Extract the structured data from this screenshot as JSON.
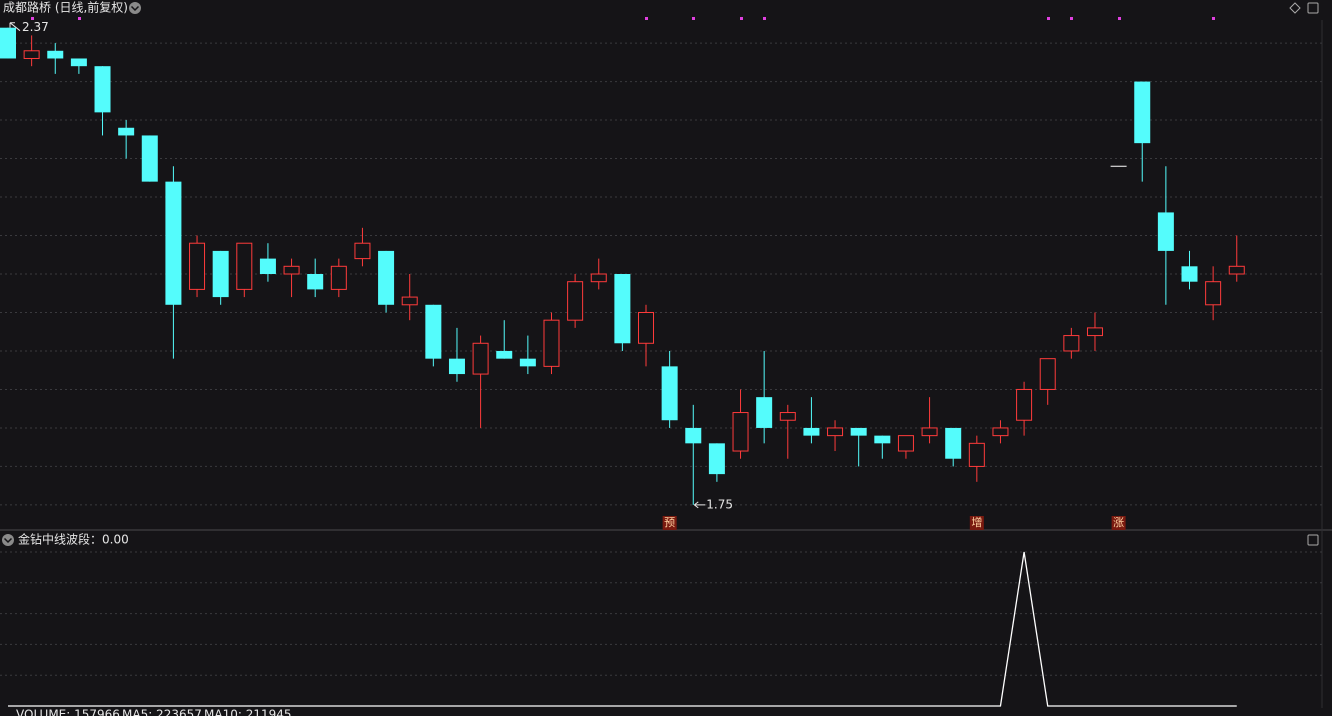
{
  "header": {
    "title": "成都路桥 (日线,前复权)"
  },
  "chart_data": [
    {
      "type": "candlestick",
      "open": [
        2.37,
        2.33,
        2.34,
        2.33,
        2.32,
        2.24,
        2.23,
        2.17,
        2.03,
        2.08,
        2.03,
        2.07,
        2.05,
        2.05,
        2.03,
        2.07,
        2.08,
        2.01,
        2.01,
        1.94,
        1.92,
        1.95,
        1.94,
        1.93,
        1.99,
        2.04,
        2.05,
        1.96,
        1.93,
        1.85,
        1.83,
        1.82,
        1.89,
        1.86,
        1.85,
        1.84,
        1.85,
        1.84,
        1.82,
        1.84,
        1.85,
        1.8,
        1.84,
        1.86,
        1.9,
        1.95,
        1.97,
        2.19,
        2.3,
        2.13,
        2.06,
        2.01,
        2.05
      ],
      "high": [
        2.37,
        2.36,
        2.35,
        2.33,
        2.32,
        2.25,
        2.23,
        2.19,
        2.1,
        2.08,
        2.09,
        2.09,
        2.07,
        2.07,
        2.07,
        2.11,
        2.08,
        2.05,
        2.01,
        1.98,
        1.97,
        1.99,
        1.97,
        2.0,
        2.05,
        2.07,
        2.05,
        2.01,
        1.95,
        1.88,
        1.83,
        1.9,
        1.95,
        1.88,
        1.89,
        1.86,
        1.85,
        1.84,
        1.84,
        1.89,
        1.85,
        1.84,
        1.86,
        1.91,
        1.94,
        1.98,
        2.0,
        2.19,
        2.3,
        2.19,
        2.08,
        2.06,
        2.1
      ],
      "low": [
        2.33,
        2.32,
        2.31,
        2.31,
        2.23,
        2.2,
        2.17,
        1.94,
        2.02,
        2.01,
        2.02,
        2.04,
        2.02,
        2.02,
        2.02,
        2.06,
        2.0,
        1.99,
        1.93,
        1.91,
        1.85,
        1.94,
        1.92,
        1.92,
        1.98,
        2.03,
        1.95,
        1.93,
        1.85,
        1.75,
        1.78,
        1.81,
        1.83,
        1.81,
        1.83,
        1.82,
        1.8,
        1.81,
        1.81,
        1.83,
        1.8,
        1.78,
        1.83,
        1.84,
        1.88,
        1.94,
        1.95,
        2.19,
        2.17,
        2.01,
        2.03,
        1.99,
        2.04
      ],
      "close": [
        2.33,
        2.34,
        2.33,
        2.32,
        2.26,
        2.23,
        2.17,
        2.01,
        2.09,
        2.02,
        2.09,
        2.05,
        2.06,
        2.03,
        2.06,
        2.09,
        2.01,
        2.02,
        1.94,
        1.92,
        1.96,
        1.94,
        1.93,
        1.99,
        2.04,
        2.05,
        1.96,
        2.0,
        1.86,
        1.83,
        1.79,
        1.87,
        1.85,
        1.87,
        1.84,
        1.85,
        1.84,
        1.83,
        1.84,
        1.85,
        1.81,
        1.83,
        1.85,
        1.9,
        1.94,
        1.97,
        1.98,
        2.19,
        2.22,
        2.08,
        2.04,
        2.04,
        2.06
      ],
      "signal_labels": [
        null,
        null,
        null,
        null,
        null,
        null,
        null,
        null,
        null,
        null,
        null,
        null,
        null,
        null,
        null,
        null,
        null,
        null,
        null,
        null,
        null,
        null,
        null,
        null,
        null,
        null,
        null,
        null,
        "预",
        null,
        null,
        null,
        null,
        null,
        null,
        null,
        null,
        null,
        null,
        null,
        null,
        "增",
        null,
        null,
        null,
        null,
        null,
        "涨",
        null,
        null,
        null,
        null,
        null
      ],
      "high_marker": 2.37,
      "low_marker": 1.75,
      "up_color": "#ff3b3b",
      "down_color": "#54fcfc",
      "flat_color": "#ffffff",
      "ylim": [
        1.72,
        2.38
      ],
      "yticks": [
        1.75,
        1.8,
        1.85,
        1.9,
        1.95,
        2.0,
        2.05,
        2.1,
        2.15,
        2.2,
        2.25,
        2.3,
        2.35
      ],
      "grid": true
    },
    {
      "type": "line",
      "title": "金钻中线波段：0.00",
      "color": "#ffffff",
      "values": [
        0,
        0,
        0,
        0,
        0,
        0,
        0,
        0,
        0,
        0,
        0,
        0,
        0,
        0,
        0,
        0,
        0,
        0,
        0,
        0,
        0,
        0,
        0,
        0,
        0,
        0,
        0,
        0,
        0,
        0,
        0,
        0,
        0,
        0,
        0,
        0,
        0,
        0,
        0,
        0,
        0,
        0,
        0,
        1,
        0,
        0,
        0,
        0,
        0,
        0,
        0,
        0,
        0
      ],
      "ylim": [
        0,
        1
      ],
      "yticks": [
        0.2,
        0.4,
        0.6,
        0.8,
        1
      ],
      "grid": true
    }
  ],
  "footer": {
    "volume": "VOLUME: 157966",
    "ma5": "MA5: 223657",
    "ma10": "MA10: 211945",
    "ma10_color": "#e8c400"
  }
}
